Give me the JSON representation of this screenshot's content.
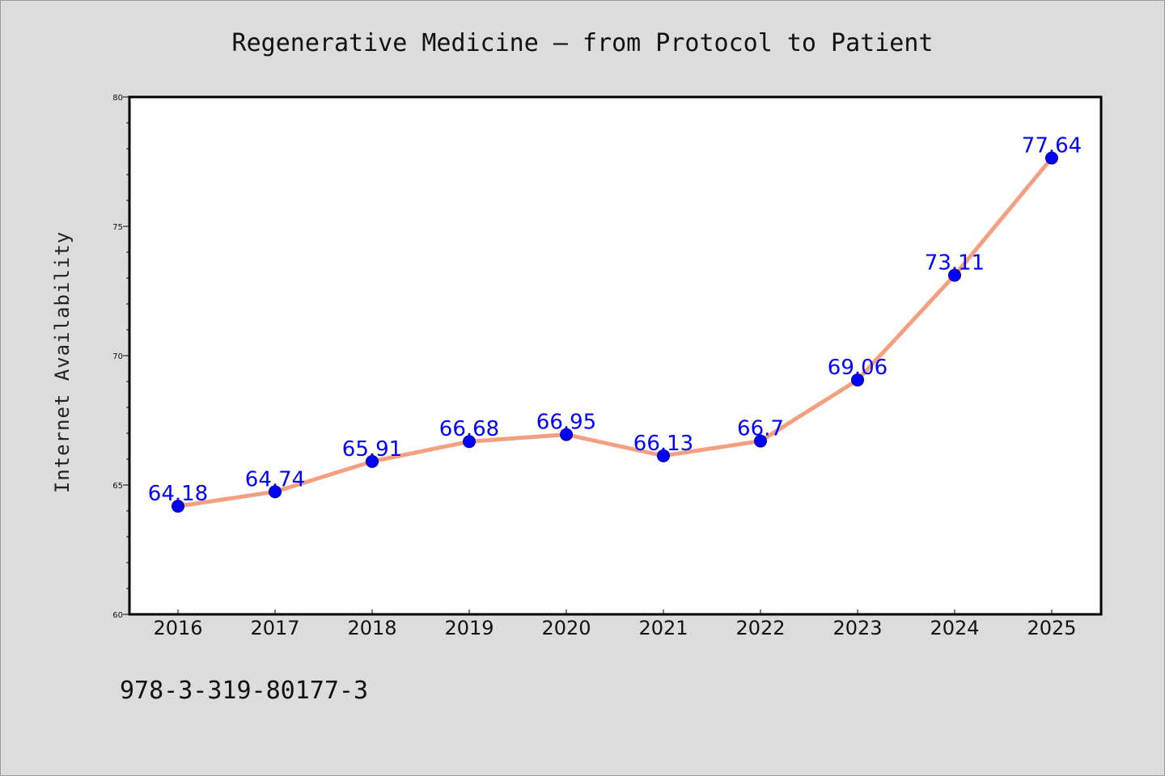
{
  "chart_data": {
    "type": "line",
    "title": "Regenerative Medicine – from Protocol to Patient",
    "xlabel": "",
    "ylabel": "Internet Availability",
    "categories": [
      "2016",
      "2017",
      "2018",
      "2019",
      "2020",
      "2021",
      "2022",
      "2023",
      "2024",
      "2025"
    ],
    "series": [
      {
        "values": [
          64.18,
          64.74,
          65.91,
          66.68,
          66.95,
          66.13,
          66.7,
          69.06,
          73.11,
          77.64
        ],
        "data_labels": [
          "64.18",
          "64.74",
          "65.91",
          "66.68",
          "66.95",
          "66.13",
          "66.7",
          "69.06",
          "73.11",
          "77.64"
        ]
      }
    ],
    "ylim": [
      60,
      80
    ],
    "yticks": [
      "60",
      "65",
      "70",
      "75",
      "80"
    ],
    "grid": false,
    "legend": "none",
    "colors": {
      "line": "#f4a080",
      "marker": "#0000ff",
      "data_label": "#0000ff",
      "plot_background": "#ffffff",
      "figure_background": "#dcdcdc"
    }
  },
  "footer": {
    "isbn": "978-3-319-80177-3"
  }
}
